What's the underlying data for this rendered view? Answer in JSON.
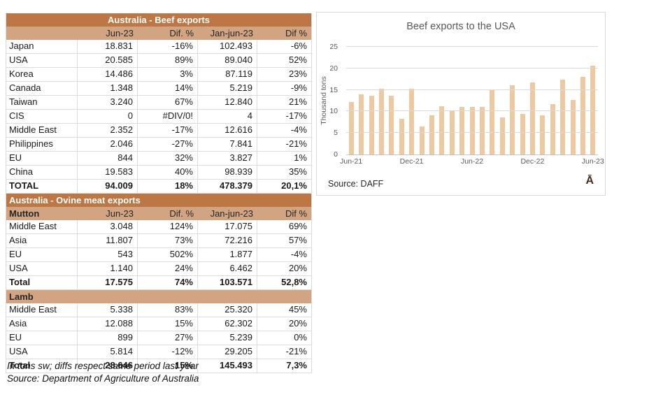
{
  "colors": {
    "band_dark": "#BC7744",
    "band_light": "#D2A482",
    "bar_fill": "#EDC9A2",
    "grid_line": "#D9D9D9",
    "axis_text": "#595959",
    "watermark_brown": "#4A2D1E"
  },
  "beef": {
    "title": "Australia - Beef exports",
    "columns": [
      "",
      "Jun-23",
      "Dif. %",
      "Jan-jun-23",
      "Dif %"
    ],
    "rows": [
      [
        "Japan",
        "18.831",
        "-16%",
        "102.493",
        "-6%"
      ],
      [
        "USA",
        "20.585",
        "89%",
        "89.040",
        "52%"
      ],
      [
        "Korea",
        "14.486",
        "3%",
        "87.119",
        "23%"
      ],
      [
        "Canada",
        "1.348",
        "14%",
        "5.219",
        "-9%"
      ],
      [
        "Taiwan",
        "3.240",
        "67%",
        "12.840",
        "21%"
      ],
      [
        "CIS",
        "0",
        "#DIV/0!",
        "4",
        "-17%"
      ],
      [
        "Middle East",
        "2.352",
        "-17%",
        "12.616",
        "-4%"
      ],
      [
        "Philippines",
        "2.046",
        "-27%",
        "7.841",
        "-21%"
      ],
      [
        "EU",
        "844",
        "32%",
        "3.827",
        "1%"
      ],
      [
        "China",
        "19.583",
        "40%",
        "98.939",
        "35%"
      ]
    ],
    "total": [
      "TOTAL",
      "94.009",
      "18%",
      "478.379",
      "20,1%"
    ]
  },
  "ovine": {
    "title": "Australia - Ovine meat exports",
    "mutton_header": [
      "Mutton",
      "Jun-23",
      "Dif. %",
      "Jan-jun-23",
      "Dif %"
    ],
    "mutton_rows": [
      [
        "Middle East",
        "3.048",
        "124%",
        "17.075",
        "69%"
      ],
      [
        "Asia",
        "11.807",
        "73%",
        "72.216",
        "57%"
      ],
      [
        "EU",
        "543",
        "502%",
        "1.877",
        "-4%"
      ],
      [
        "USA",
        "1.140",
        "24%",
        "6.462",
        "20%"
      ]
    ],
    "mutton_total": [
      "Total",
      "17.575",
      "74%",
      "103.571",
      "52,8%"
    ],
    "lamb_header": "Lamb",
    "lamb_rows": [
      [
        "Middle East",
        "5.338",
        "83%",
        "25.320",
        "45%"
      ],
      [
        "Asia",
        "12.088",
        "15%",
        "62.302",
        "20%"
      ],
      [
        "EU",
        "899",
        "27%",
        "5.239",
        "0%"
      ],
      [
        "USA",
        "5.814",
        "-12%",
        "29.205",
        "-21%"
      ]
    ],
    "lamb_total": [
      "Total",
      "28.646",
      "15%",
      "145.493",
      "7,3%"
    ]
  },
  "footnotes": [
    "In tons sw; diffs respect same period last year",
    "Source: Department of Agriculture of Australia"
  ],
  "chart_data": {
    "type": "bar",
    "title": "Beef exports to the USA",
    "ylabel": "Thousand tons",
    "xlabel": "",
    "ylim": [
      0,
      25
    ],
    "yticks": [
      0,
      5,
      10,
      15,
      20,
      25
    ],
    "values": [
      12.2,
      14.0,
      13.6,
      15.3,
      13.6,
      8.3,
      15.3,
      6.5,
      9.1,
      11.2,
      10.0,
      11.1,
      11.0,
      11.1,
      15.1,
      8.6,
      16.1,
      9.4,
      16.8,
      9.1,
      11.7,
      17.4,
      12.6,
      18.1,
      20.6
    ],
    "xticks": [
      {
        "index": 0,
        "label": "Jun-21"
      },
      {
        "index": 6,
        "label": "Dec-21"
      },
      {
        "index": 12,
        "label": "Jun-22"
      },
      {
        "index": 18,
        "label": "Dec-22"
      },
      {
        "index": 24,
        "label": "Jun-23"
      }
    ],
    "grid": true,
    "legend": "none",
    "source": "Source: DAFF",
    "watermark": "Ā"
  }
}
